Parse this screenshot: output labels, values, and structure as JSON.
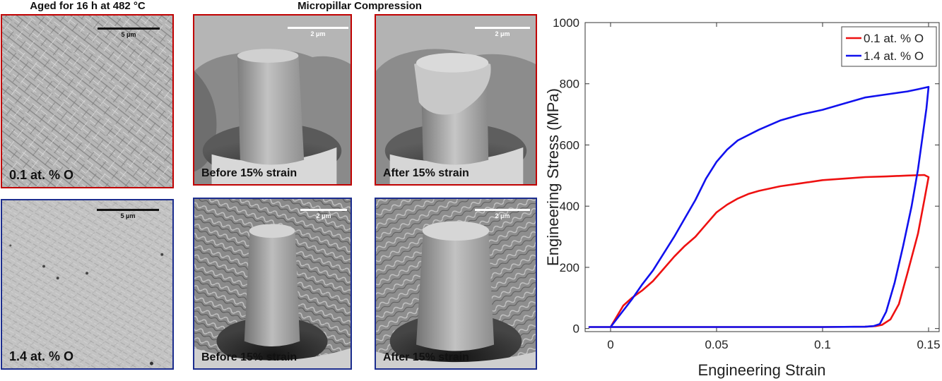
{
  "headers": {
    "left": "Aged for 16 h at 482 °C",
    "middle": "Micropillar Compression"
  },
  "panels": {
    "tl_label": "0.1 at. % O",
    "bl_label": "1.4 at. % O",
    "scale_5um": "5 μm",
    "scale_2um": "2 μm",
    "before_label": "Before 15% strain",
    "after_label": "After 15% strain"
  },
  "colors": {
    "low_oxygen_frame": "#c00000",
    "high_oxygen_frame": "#1c2d8e"
  },
  "chart_data": {
    "type": "line",
    "xlabel": "Engineering Strain",
    "ylabel": "Engineering Stress (MPa)",
    "xlim": [
      -0.012,
      0.155
    ],
    "ylim": [
      -10,
      1000
    ],
    "xticks": [
      0,
      0.05,
      0.1,
      0.15
    ],
    "xtick_labels": [
      "0",
      "0.05",
      "0.1",
      "0.15"
    ],
    "yticks": [
      0,
      200,
      400,
      600,
      800,
      1000
    ],
    "ytick_labels": [
      "0",
      "200",
      "400",
      "600",
      "800",
      "1000"
    ],
    "legend_position": "top-right",
    "series": [
      {
        "name": "0.1 at. % O",
        "color": "#ee1111",
        "x": [
          -0.01,
          0,
          0.003,
          0.006,
          0.01,
          0.015,
          0.02,
          0.025,
          0.03,
          0.035,
          0.04,
          0.045,
          0.05,
          0.055,
          0.06,
          0.065,
          0.07,
          0.08,
          0.09,
          0.1,
          0.11,
          0.12,
          0.13,
          0.14,
          0.148,
          0.15,
          0.148,
          0.145,
          0.14,
          0.136,
          0.132,
          0.128,
          0.125,
          0.12,
          0.1,
          0.08,
          0.06,
          0.04,
          0.02,
          0,
          -0.01
        ],
        "y": [
          5,
          5,
          40,
          75,
          100,
          125,
          155,
          195,
          235,
          270,
          300,
          340,
          380,
          405,
          425,
          440,
          450,
          465,
          475,
          485,
          490,
          495,
          497,
          500,
          502,
          495,
          420,
          310,
          180,
          80,
          30,
          12,
          8,
          6,
          5,
          5,
          5,
          5,
          5,
          5,
          5
        ]
      },
      {
        "name": "1.4 at. % O",
        "color": "#1111ee",
        "x": [
          -0.01,
          0,
          0.005,
          0.01,
          0.015,
          0.02,
          0.025,
          0.03,
          0.035,
          0.04,
          0.045,
          0.05,
          0.055,
          0.06,
          0.07,
          0.08,
          0.09,
          0.1,
          0.11,
          0.12,
          0.13,
          0.14,
          0.145,
          0.15,
          0.149,
          0.147,
          0.145,
          0.142,
          0.138,
          0.134,
          0.13,
          0.127,
          0.124,
          0.12,
          0.1,
          0.08,
          0.06,
          0.04,
          0.02,
          0,
          -0.01
        ],
        "y": [
          5,
          5,
          50,
          95,
          145,
          190,
          245,
          300,
          360,
          420,
          490,
          545,
          585,
          615,
          650,
          680,
          700,
          715,
          735,
          755,
          765,
          775,
          782,
          790,
          720,
          620,
          520,
          400,
          270,
          150,
          55,
          15,
          8,
          6,
          5,
          5,
          5,
          5,
          5,
          5,
          5
        ]
      }
    ]
  }
}
